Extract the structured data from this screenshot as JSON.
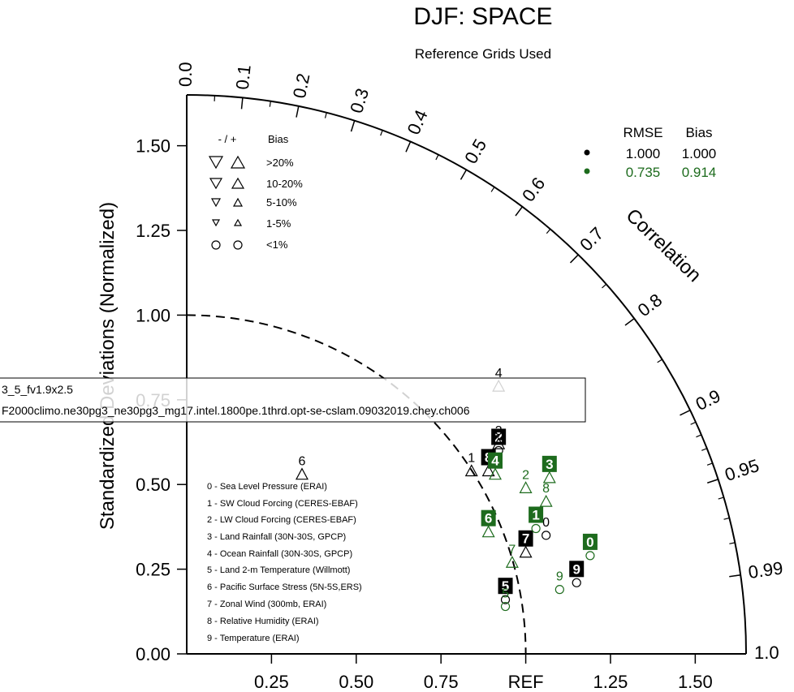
{
  "title": "DJF: SPACE",
  "subtitle": "Reference Grids Used",
  "colors": {
    "black": "#000000",
    "green": "#1d6b1d"
  },
  "chart_data": {
    "type": "scatter",
    "subtype": "taylor-diagram",
    "title": "DJF: SPACE",
    "subtitle": "Reference Grids Used",
    "ylabel": "Standardized Deviations (Normalized)",
    "arc_label": "Correlation",
    "std_ticks_y": [
      "0.00",
      "0.25",
      "0.50",
      "0.75",
      "1.00",
      "1.25",
      "1.50"
    ],
    "std_ticks_x": [
      "0.25",
      "0.50",
      "0.75",
      "REF",
      "1.25",
      "1.50"
    ],
    "corr_ticks": [
      "0.0",
      "0.1",
      "0.2",
      "0.3",
      "0.4",
      "0.5",
      "0.6",
      "0.7",
      "0.8",
      "0.9",
      "0.95",
      "0.99",
      "1.0"
    ],
    "std_range": [
      0,
      1.65
    ],
    "ref_arc_std": 1.0,
    "bias_legend": {
      "header_sign": "- / +",
      "header_bias": "Bias",
      "rows": [
        ">20%",
        "10-20%",
        "5-10%",
        "1-5%",
        "<1%"
      ]
    },
    "stats_legend": {
      "headers": [
        "RMSE",
        "Bias"
      ],
      "rows": [
        {
          "color": "#000000",
          "rmse": "1.000",
          "bias": "1.000"
        },
        {
          "color": "#1d6b1d",
          "rmse": "0.735",
          "bias": "0.914"
        }
      ]
    },
    "case_labels": [
      "3_5_fv1.9x2.5",
      "F2000climo.ne30pg3_ne30pg3_mg17.intel.1800pe.1thrd.opt-se-cslam.09032019.chey.ch006"
    ],
    "variables": [
      "0 - Sea Level Pressure (ERAI)",
      "1 - SW Cloud Forcing (CERES-EBAF)",
      "2 - LW Cloud Forcing (CERES-EBAF)",
      "3 - Land Rainfall (30N-30S, GPCP)",
      "4 - Ocean Rainfall (30N-30S, GPCP)",
      "5 - Land 2-m Temperature (Willmott)",
      "6 - Pacific Surface Stress (5N-5S,ERS)",
      "7 - Zonal Wind (300mb, ERAI)",
      "8 - Relative Humidity (ERAI)",
      "9 - Temperature (ERAI)"
    ],
    "series": [
      {
        "color": "#000000",
        "points": [
          {
            "label": "0",
            "x": 1.06,
            "y": 0.35,
            "marker": "circle",
            "boxed": false
          },
          {
            "label": "1",
            "x": 0.84,
            "y": 0.54,
            "marker": "tri-up",
            "boxed": false
          },
          {
            "label": "2",
            "x": 0.92,
            "y": 0.6,
            "marker": "circle",
            "boxed": true
          },
          {
            "label": "3",
            "x": 0.92,
            "y": 0.62,
            "marker": "tri-up",
            "boxed": false
          },
          {
            "label": "4",
            "x": 0.92,
            "y": 0.79,
            "marker": "tri-up",
            "boxed": false
          },
          {
            "label": "5",
            "x": 0.94,
            "y": 0.16,
            "marker": "circle",
            "boxed": true
          },
          {
            "label": "6",
            "x": 0.34,
            "y": 0.53,
            "marker": "tri-up",
            "boxed": false
          },
          {
            "label": "7",
            "x": 1.0,
            "y": 0.3,
            "marker": "tri-up",
            "boxed": true
          },
          {
            "label": "8",
            "x": 0.89,
            "y": 0.54,
            "marker": "tri-up",
            "boxed": true
          },
          {
            "label": "9",
            "x": 1.15,
            "y": 0.21,
            "marker": "circle",
            "boxed": true
          }
        ]
      },
      {
        "color": "#1d6b1d",
        "points": [
          {
            "label": "0",
            "x": 1.19,
            "y": 0.29,
            "marker": "circle",
            "boxed": true
          },
          {
            "label": "1",
            "x": 1.03,
            "y": 0.37,
            "marker": "circle",
            "boxed": true
          },
          {
            "label": "2",
            "x": 1.0,
            "y": 0.49,
            "marker": "tri-up",
            "boxed": false
          },
          {
            "label": "3",
            "x": 1.07,
            "y": 0.52,
            "marker": "tri-up",
            "boxed": true
          },
          {
            "label": "4",
            "x": 0.91,
            "y": 0.53,
            "marker": "tri-up",
            "boxed": true
          },
          {
            "label": "5",
            "x": 0.94,
            "y": 0.14,
            "marker": "circle",
            "boxed": false
          },
          {
            "label": "6",
            "x": 0.89,
            "y": 0.36,
            "marker": "tri-up",
            "boxed": true
          },
          {
            "label": "7",
            "x": 0.96,
            "y": 0.27,
            "marker": "tri-up",
            "boxed": false
          },
          {
            "label": "8",
            "x": 1.06,
            "y": 0.45,
            "marker": "tri-up",
            "boxed": false
          },
          {
            "label": "9",
            "x": 1.1,
            "y": 0.19,
            "marker": "circle",
            "boxed": false
          }
        ]
      }
    ]
  }
}
